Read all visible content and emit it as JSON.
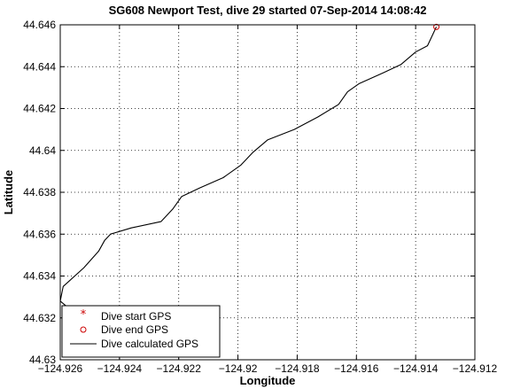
{
  "chart_data": {
    "type": "line",
    "title": "SG608 Newport Test, dive 29 started 07-Sep-2014 14:08:42",
    "xlabel": "Longitude",
    "ylabel": "Latitude",
    "xlim": [
      -124.926,
      -124.912
    ],
    "ylim": [
      44.63,
      44.646
    ],
    "xticks": [
      -124.926,
      -124.924,
      -124.922,
      -124.92,
      -124.918,
      -124.916,
      -124.914,
      -124.912
    ],
    "xtick_labels": [
      "−124.926",
      "−124.924",
      "−124.922",
      "−124.92",
      "−124.918",
      "−124.916",
      "−124.914",
      "−124.912"
    ],
    "yticks": [
      44.63,
      44.632,
      44.634,
      44.636,
      44.638,
      44.64,
      44.642,
      44.644,
      44.646
    ],
    "ytick_labels": [
      "44.63",
      "44.632",
      "44.634",
      "44.636",
      "44.638",
      "44.64",
      "44.642",
      "44.644",
      "44.646"
    ],
    "grid": true,
    "legend_position": "bottom-left",
    "legend": [
      {
        "label": "Dive start GPS",
        "marker": "star",
        "color": "#cc0000"
      },
      {
        "label": "Dive end GPS",
        "marker": "circle",
        "color": "#cc0000"
      },
      {
        "label": "Dive calculated GPS",
        "marker": "line",
        "color": "#000000"
      }
    ],
    "series": [
      {
        "name": "Dive calculated GPS",
        "color": "#000000",
        "points": [
          [
            -124.9243,
            44.6307
          ],
          [
            -124.9248,
            44.6313
          ],
          [
            -124.9254,
            44.6321
          ],
          [
            -124.926,
            44.6328
          ],
          [
            -124.9259,
            44.6335
          ],
          [
            -124.9252,
            44.6344
          ],
          [
            -124.9247,
            44.6352
          ],
          [
            -124.9245,
            44.6357
          ],
          [
            -124.9243,
            44.636
          ],
          [
            -124.9236,
            44.6363
          ],
          [
            -124.9226,
            44.6366
          ],
          [
            -124.9222,
            44.6372
          ],
          [
            -124.9219,
            44.6378
          ],
          [
            -124.9213,
            44.6382
          ],
          [
            -124.9205,
            44.6387
          ],
          [
            -124.9199,
            44.6393
          ],
          [
            -124.9195,
            44.6399
          ],
          [
            -124.919,
            44.6405
          ],
          [
            -124.9181,
            44.641
          ],
          [
            -124.9173,
            44.6416
          ],
          [
            -124.9166,
            44.6422
          ],
          [
            -124.9163,
            44.6428
          ],
          [
            -124.9159,
            44.6432
          ],
          [
            -124.9151,
            44.6437
          ],
          [
            -124.9145,
            44.6441
          ],
          [
            -124.914,
            44.6447
          ],
          [
            -124.9136,
            44.645
          ],
          [
            -124.9134,
            44.6456
          ],
          [
            -124.9133,
            44.6459
          ]
        ]
      }
    ],
    "markers": [
      {
        "name": "Dive end GPS",
        "marker": "circle",
        "color": "#cc0000",
        "x": -124.9133,
        "y": 44.6459
      }
    ]
  }
}
